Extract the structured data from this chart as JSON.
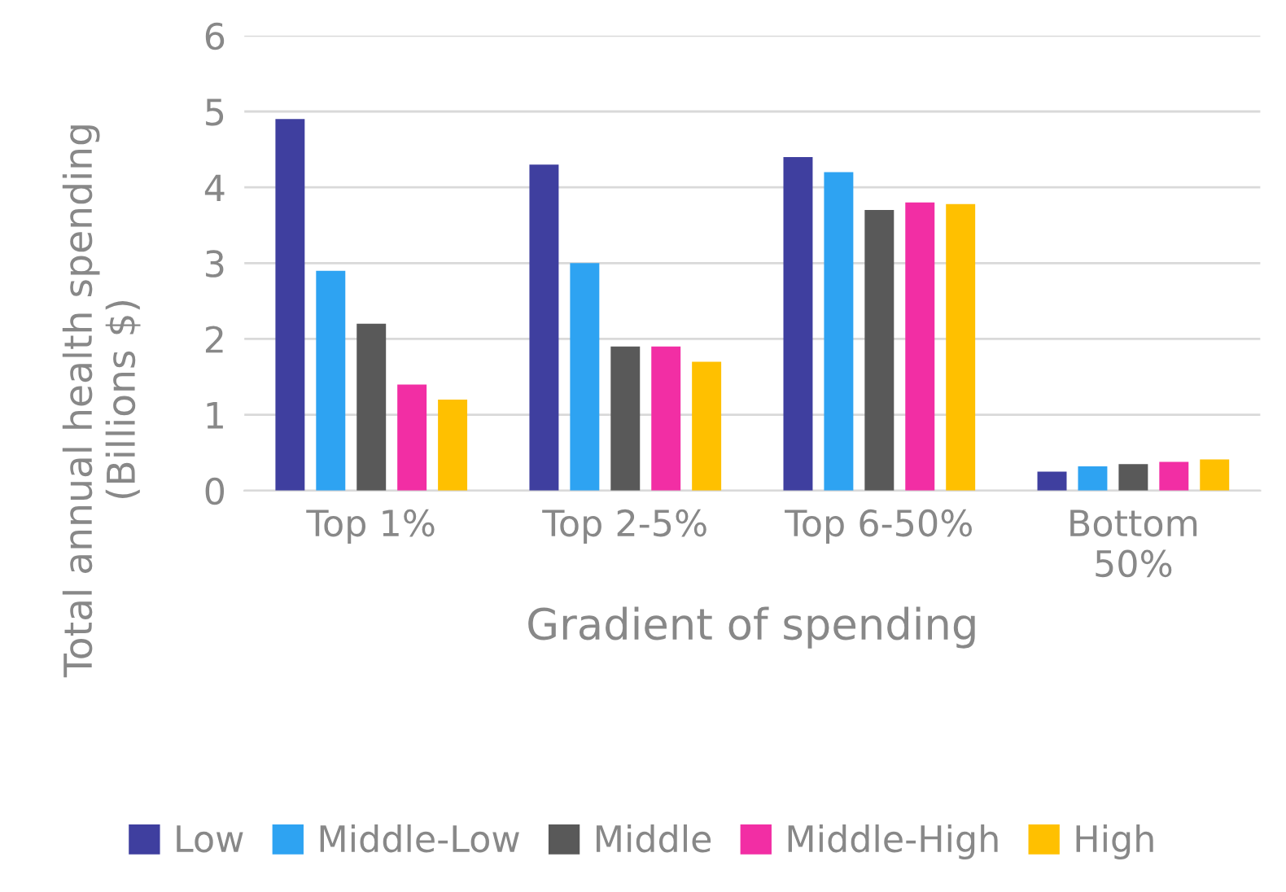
{
  "chart_data": {
    "type": "bar",
    "xlabel": "Gradient of spending",
    "ylabel": "Total annual health spending\n(Billions $)",
    "categories": [
      "Top 1%",
      "Top 2-5%",
      "Top 6-50%",
      "Bottom\n50%"
    ],
    "series": [
      {
        "name": "Low",
        "color": "#3f3f9f",
        "values": [
          4.9,
          4.3,
          4.4,
          0.25
        ]
      },
      {
        "name": "Middle-Low",
        "color": "#2ea3f2",
        "values": [
          2.9,
          3.0,
          4.2,
          0.32
        ]
      },
      {
        "name": "Middle",
        "color": "#595959",
        "values": [
          2.2,
          1.9,
          3.7,
          0.35
        ]
      },
      {
        "name": "Middle-High",
        "color": "#f22ea4",
        "values": [
          1.4,
          1.9,
          3.8,
          0.38
        ]
      },
      {
        "name": "High",
        "color": "#ffc000",
        "values": [
          1.2,
          1.7,
          3.78,
          0.41
        ]
      }
    ],
    "ylim": [
      0,
      6
    ],
    "yticks": [
      0,
      1,
      2,
      3,
      4,
      5,
      6
    ],
    "grid": "y",
    "legend": "bottom"
  }
}
